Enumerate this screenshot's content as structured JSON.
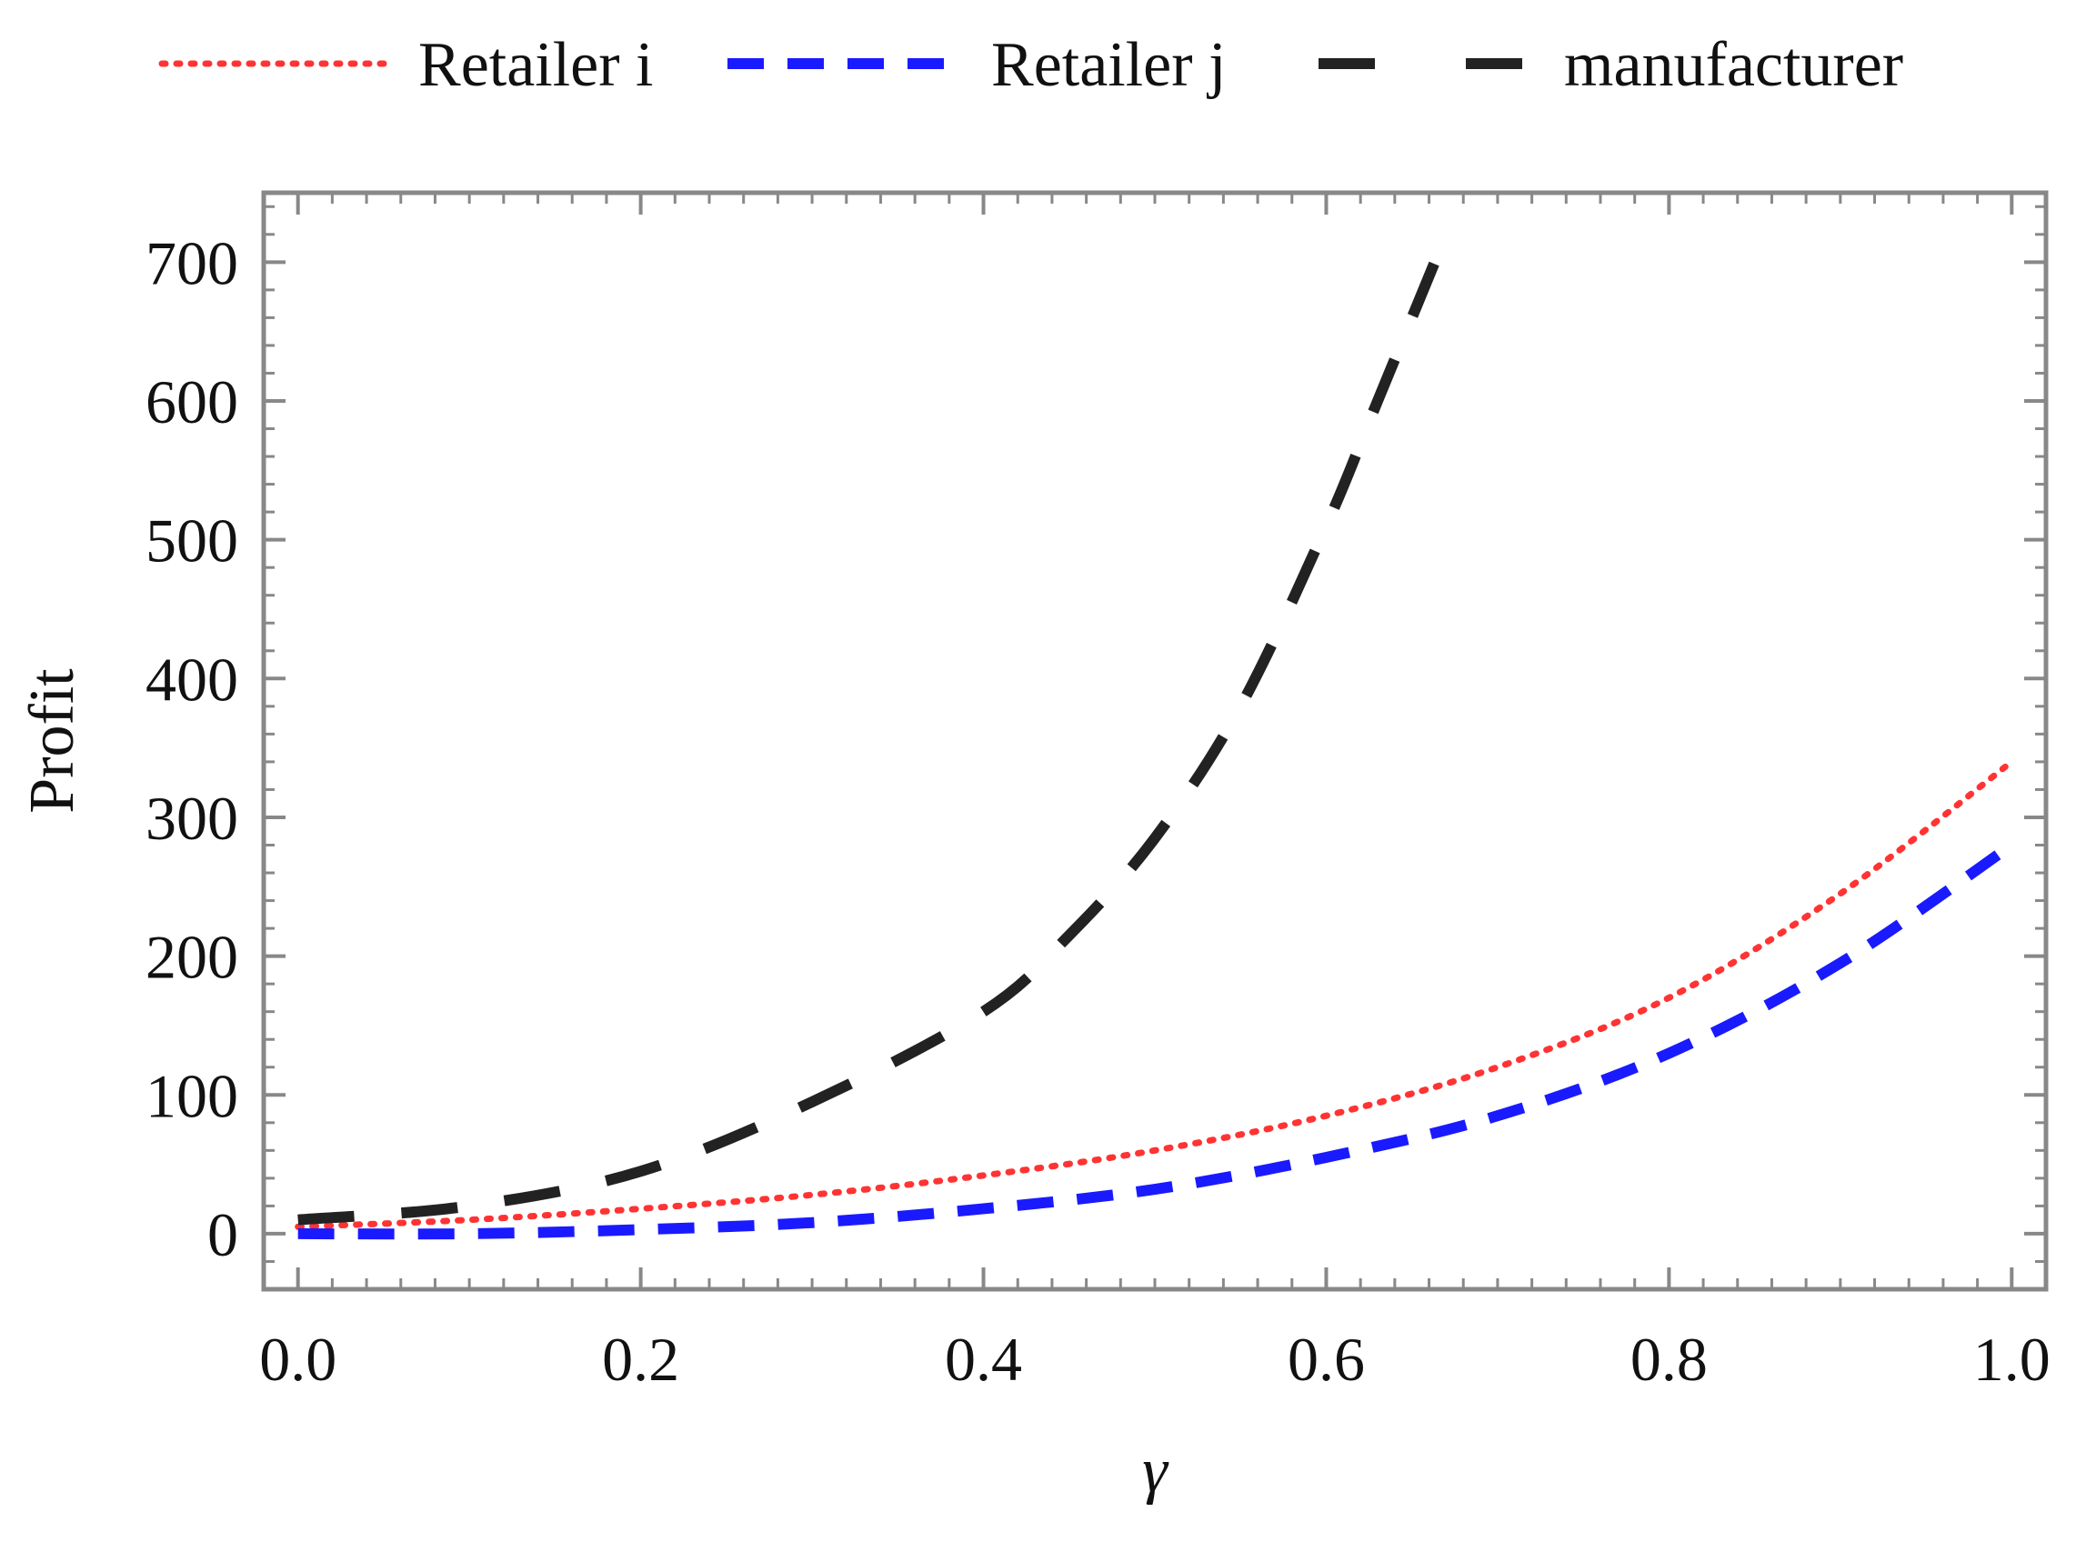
{
  "chart_data": {
    "type": "line",
    "xlabel": "γ",
    "ylabel": "Profit",
    "xlim": [
      -0.02,
      1.02
    ],
    "ylim": [
      -40,
      750
    ],
    "x_ticks": [
      0.0,
      0.2,
      0.4,
      0.6,
      0.8,
      1.0
    ],
    "x_tick_labels": [
      "0.0",
      "0.2",
      "0.4",
      "0.6",
      "0.8",
      "1.0"
    ],
    "y_ticks": [
      0,
      100,
      200,
      300,
      400,
      500,
      600,
      700
    ],
    "y_tick_labels": [
      "0",
      "100",
      "200",
      "300",
      "400",
      "500",
      "600",
      "700"
    ],
    "legend_position": "top",
    "grid": false,
    "series": [
      {
        "name": "Retailer i",
        "color": "#ff3333",
        "style": "dotted",
        "x": [
          0.0,
          0.1,
          0.2,
          0.3,
          0.4,
          0.5,
          0.6,
          0.7,
          0.8,
          0.9,
          1.0
        ],
        "y": [
          5,
          10,
          18,
          28,
          42,
          60,
          85,
          120,
          170,
          245,
          340
        ]
      },
      {
        "name": "Retailer j",
        "color": "#1a1aff",
        "style": "dashed",
        "x": [
          0.0,
          0.1,
          0.2,
          0.3,
          0.4,
          0.5,
          0.6,
          0.7,
          0.8,
          0.9,
          1.0
        ],
        "y": [
          0,
          0,
          3,
          8,
          18,
          32,
          55,
          85,
          130,
          195,
          280
        ]
      },
      {
        "name": "manufacturer",
        "color": "#222222",
        "style": "long-dashed",
        "x": [
          0.0,
          0.1,
          0.2,
          0.3,
          0.4,
          0.45,
          0.5,
          0.55,
          0.6,
          0.63,
          0.67
        ],
        "y": [
          10,
          20,
          45,
          95,
          160,
          215,
          285,
          380,
          510,
          600,
          720
        ]
      }
    ]
  }
}
